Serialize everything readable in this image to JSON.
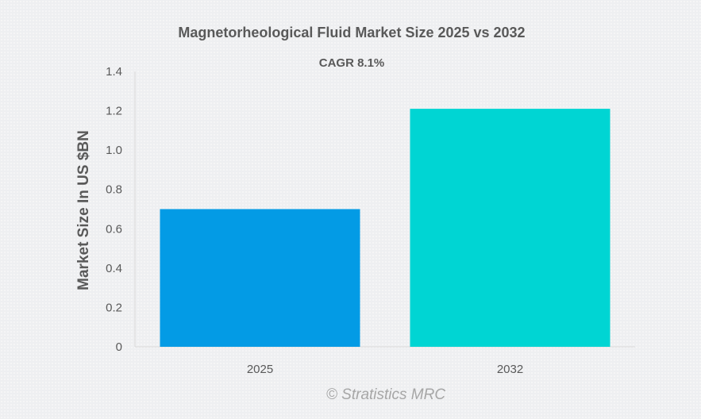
{
  "chart_data": {
    "type": "bar",
    "title": "Magnetorheological Fluid Market Size 2025 vs 2032",
    "subtitle": "CAGR 8.1%",
    "xlabel": "",
    "ylabel": "Market Size In US $BN",
    "categories": [
      "2025",
      "2032"
    ],
    "values": [
      0.7,
      1.21
    ],
    "colors": [
      "#039be5",
      "#00d5d3"
    ],
    "ylim": [
      0,
      1.4
    ],
    "yticks": [
      "0",
      "0.2",
      "0.4",
      "0.6",
      "0.8",
      "1.0",
      "1.2",
      "1.4"
    ],
    "grid": false,
    "legend": "none"
  },
  "credit": "© Stratistics MRC",
  "colors": {
    "axis": "#d9d9d9",
    "text": "#595959",
    "credit": "#a6a6a6"
  }
}
